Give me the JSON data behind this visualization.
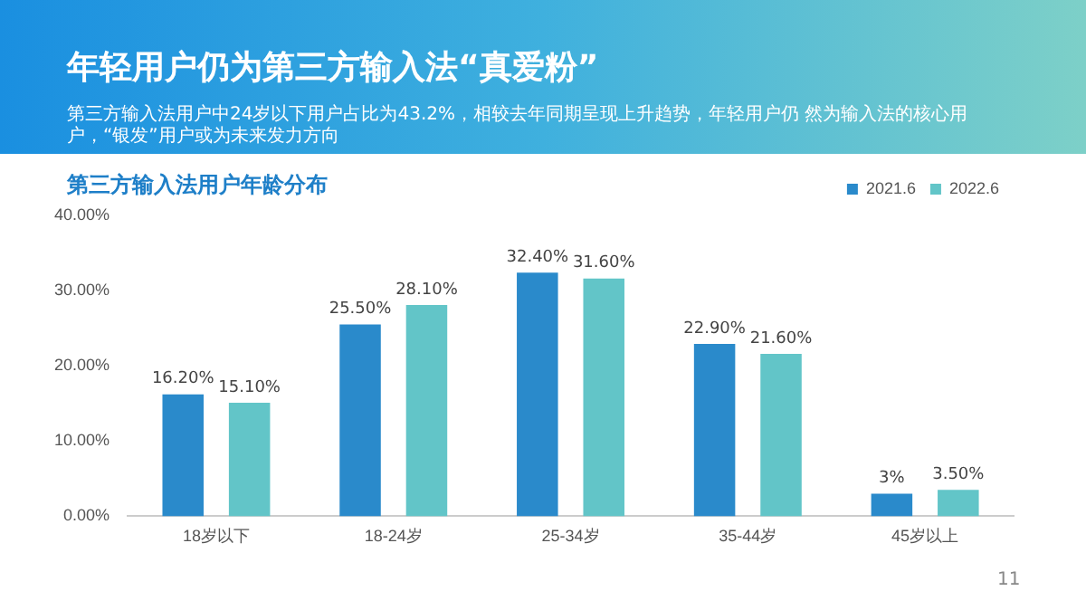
{
  "chart_data": {
    "type": "bar",
    "title": "年轻用户仍为第三方输入法“真爱粉”",
    "subtitle": "第三方输入法用户中24岁以下用户占比为43.2%，相较去年同期呈现上升趋势，年轻用户仍 然为输入法的核心用户，“银发”用户或为未来发力方向",
    "annotations": [
      "第三方输入法用户年龄分布",
      "11"
    ],
    "categories": [
      "18岁以下",
      "18-24岁",
      "25-34岁",
      "35-44岁",
      "45岁以上"
    ],
    "series": [
      {
        "name": "2021.6",
        "color": "#2a8acb",
        "values": [
          16.2,
          25.5,
          32.4,
          22.9,
          3
        ],
        "value_labels": [
          "16.20%",
          "25.50%",
          "32.40%",
          "22.90%",
          "3%"
        ]
      },
      {
        "name": "2022.6",
        "color": "#62c5c8",
        "values": [
          15.1,
          28.1,
          31.6,
          21.6,
          3.5
        ],
        "value_labels": [
          "15.10%",
          "28.10%",
          "31.60%",
          "21.60%",
          "3.50%"
        ]
      }
    ],
    "ylim": [
      0,
      40
    ],
    "yticks": [
      {
        "value": 0,
        "label": "0.00%"
      },
      {
        "value": 10,
        "label": "10.00%"
      },
      {
        "value": 20,
        "label": "20.00%"
      },
      {
        "value": 30,
        "label": "30.00%"
      },
      {
        "value": 40,
        "label": "40.00%"
      }
    ],
    "grid": false,
    "legend": "top right"
  }
}
